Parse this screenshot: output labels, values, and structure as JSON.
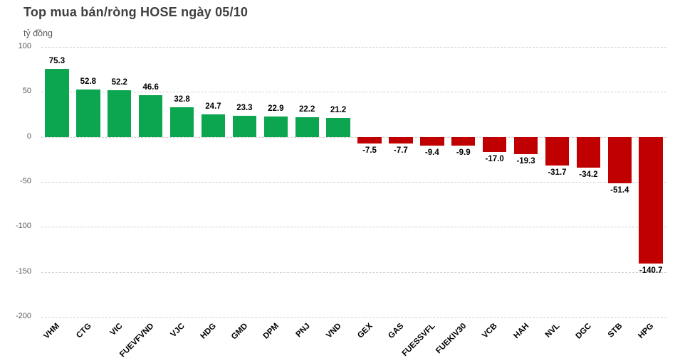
{
  "title": "Top mua bán/ròng HOSE ngày 05/10",
  "unit_label": "tỷ đồng",
  "colors": {
    "positive": "#0da650",
    "negative": "#c00000",
    "grid": "#d0d0d0",
    "title_text": "#3f3f3f",
    "axis_text": "#595959",
    "value_text": "#000000",
    "background": "#ffffff"
  },
  "chart_data": {
    "type": "bar",
    "title": "Top mua bán/ròng HOSE ngày 05/10",
    "ylabel": "tỷ đồng",
    "xlabel": "",
    "categories": [
      "VHM",
      "CTG",
      "VIC",
      "FUEVFVND",
      "VJC",
      "HDG",
      "GMD",
      "DPM",
      "PNJ",
      "VND",
      "GEX",
      "GAS",
      "FUESSVFL",
      "FUEKIV30",
      "VCB",
      "HAH",
      "NVL",
      "DGC",
      "STB",
      "HPG"
    ],
    "values": [
      75.3,
      52.8,
      52.2,
      46.6,
      32.8,
      24.7,
      23.3,
      22.9,
      22.2,
      21.2,
      -7.5,
      -7.7,
      -9.4,
      -9.9,
      -17.0,
      -19.3,
      -31.7,
      -34.2,
      -51.4,
      -140.7
    ],
    "ylim": [
      -200,
      100
    ],
    "yticks": [
      100,
      50,
      0,
      -50,
      -100,
      -150,
      -200
    ],
    "grid": true,
    "legend_position": "none",
    "tick_label_rotation_deg": 45,
    "value_label_decimals": 1
  }
}
